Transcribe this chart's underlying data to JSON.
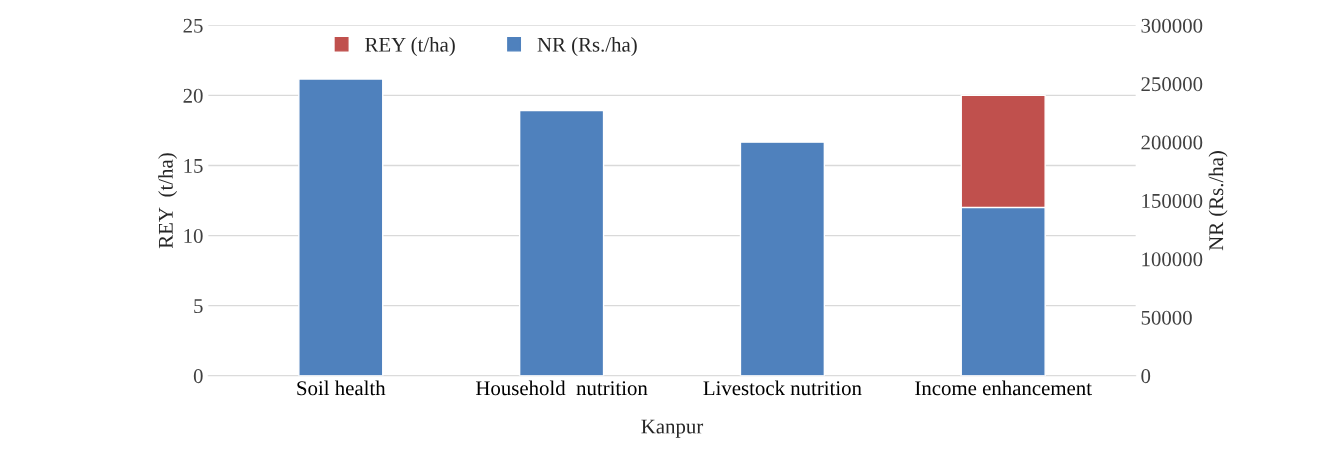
{
  "chart_data": {
    "type": "bar",
    "xlabel": "Kanpur",
    "ylabel": "REY  (t/ha)",
    "y2label": "NR (Rs./ha)",
    "categories": [
      "Soil health",
      "Household  nutrition",
      "Livestock nutrition",
      "Income enhancement"
    ],
    "series": [
      {
        "name": "REY (t/ha)",
        "color": "#c0504d",
        "values": [
          null,
          null,
          null,
          20
        ]
      },
      {
        "name": "NR (Rs./ha)",
        "color": "#4f81bd",
        "axis": "y2",
        "values": [
          254000,
          227000,
          200000,
          144000
        ]
      }
    ],
    "ylim": [
      0,
      25
    ],
    "yticks": [
      0,
      5,
      10,
      15,
      20,
      25
    ],
    "y2lim": [
      0,
      300000
    ],
    "y2ticks": [
      0,
      50000,
      100000,
      150000,
      200000,
      250000,
      300000
    ],
    "grid": "y",
    "legend": "top"
  }
}
